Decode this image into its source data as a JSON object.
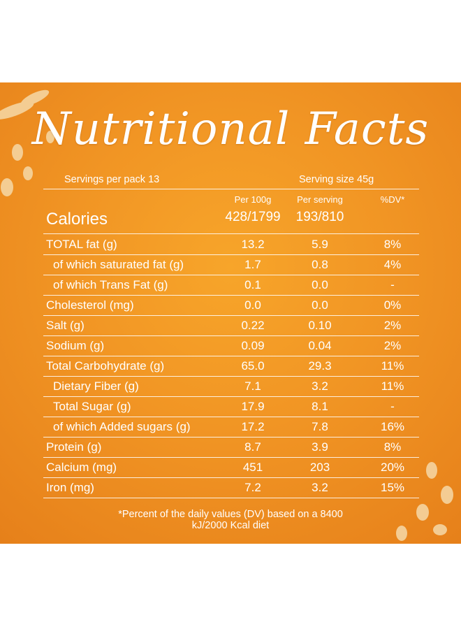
{
  "header": {
    "title": "Nutritional Facts",
    "servings": "Servings per pack 13",
    "serving_size": "Serving size 45g"
  },
  "table": {
    "columns": [
      "Per 100g",
      "Per serving",
      "%DV*"
    ],
    "calories": {
      "label": "Calories",
      "per_100g": "428/1799",
      "per_serving": "193/810"
    },
    "rows": [
      [
        "TOTAL fat (g)",
        "13.2",
        "5.9",
        "8%"
      ],
      [
        "of which saturated fat (g)",
        "1.7",
        "0.8",
        "4%"
      ],
      [
        "of which Trans Fat (g)",
        "0.1",
        "0.0",
        "-"
      ],
      [
        "Cholesterol (mg)",
        "0.0",
        "0.0",
        "0%"
      ],
      [
        "Salt (g)",
        "0.22",
        "0.10",
        "2%"
      ],
      [
        "Sodium (g)",
        "0.09",
        "0.04",
        "2%"
      ],
      [
        "Total Carbohydrate (g)",
        "65.0",
        "29.3",
        "11%"
      ],
      [
        "Dietary Fiber (g)",
        "7.1",
        "3.2",
        "11%"
      ],
      [
        "Total Sugar (g)",
        "17.9",
        "8.1",
        "-"
      ],
      [
        "of which Added sugars (g)",
        "17.2",
        "7.8",
        "16%"
      ],
      [
        "Protein (g)",
        "8.7",
        "3.9",
        "8%"
      ],
      [
        "Calcium (mg)",
        "451",
        "203",
        "20%"
      ],
      [
        "Iron (mg)",
        "7.2",
        "3.2",
        "15%"
      ]
    ]
  },
  "footnote": "*Percent of the daily values (DV) based on a 8400 kJ/2000 Kcal diet"
}
